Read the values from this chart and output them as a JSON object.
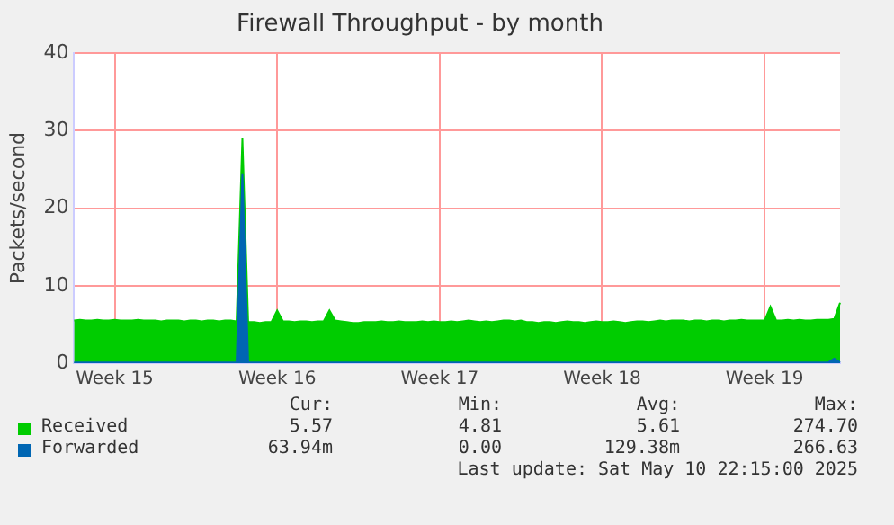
{
  "chart_data": {
    "type": "area",
    "title": "Firewall Throughput - by month",
    "ylabel": "Packets/second",
    "categories": [
      null,
      null,
      null,
      null,
      null,
      null,
      null,
      "Week 15",
      null,
      null,
      null,
      null,
      null,
      null,
      null,
      null,
      null,
      null,
      null,
      null,
      null,
      null,
      null,
      null,
      null,
      null,
      null,
      null,
      null,
      null,
      null,
      null,
      null,
      null,
      null,
      "Week 16",
      null,
      null,
      null,
      null,
      null,
      null,
      null,
      null,
      null,
      null,
      null,
      null,
      null,
      null,
      null,
      null,
      null,
      null,
      null,
      null,
      null,
      null,
      null,
      null,
      null,
      null,
      null,
      "Week 17",
      null,
      null,
      null,
      null,
      null,
      null,
      null,
      null,
      null,
      null,
      null,
      null,
      null,
      null,
      null,
      null,
      null,
      null,
      null,
      null,
      null,
      null,
      null,
      null,
      null,
      null,
      null,
      "Week 18",
      null,
      null,
      null,
      null,
      null,
      null,
      null,
      null,
      null,
      null,
      null,
      null,
      null,
      null,
      null,
      null,
      null,
      null,
      null,
      null,
      null,
      null,
      null,
      null,
      null,
      null,
      null,
      "Week 19",
      null,
      null,
      null,
      null,
      null,
      null,
      null,
      null,
      null,
      null,
      null,
      null,
      null
    ],
    "ylim": [
      0,
      40
    ],
    "yticks": [
      0,
      10,
      20,
      30,
      40
    ],
    "grid": true,
    "legend": "bottom left",
    "series": [
      {
        "name": "Received",
        "color": "#00cc00",
        "values": [
          5.5,
          5.6,
          5.5,
          5.5,
          5.6,
          5.5,
          5.5,
          5.6,
          5.5,
          5.5,
          5.5,
          5.6,
          5.5,
          5.5,
          5.5,
          5.4,
          5.5,
          5.5,
          5.5,
          5.4,
          5.5,
          5.5,
          5.4,
          5.5,
          5.5,
          5.4,
          5.5,
          5.5,
          5.4,
          29,
          5.3,
          5.3,
          5.2,
          5.3,
          5.3,
          6.8,
          5.4,
          5.4,
          5.3,
          5.4,
          5.4,
          5.3,
          5.4,
          5.4,
          6.8,
          5.5,
          5.4,
          5.3,
          5.2,
          5.2,
          5.3,
          5.3,
          5.3,
          5.4,
          5.3,
          5.3,
          5.4,
          5.3,
          5.3,
          5.3,
          5.4,
          5.3,
          5.4,
          5.3,
          5.3,
          5.4,
          5.3,
          5.4,
          5.5,
          5.4,
          5.3,
          5.4,
          5.3,
          5.4,
          5.5,
          5.5,
          5.4,
          5.5,
          5.3,
          5.3,
          5.2,
          5.3,
          5.3,
          5.2,
          5.3,
          5.4,
          5.3,
          5.3,
          5.2,
          5.3,
          5.4,
          5.3,
          5.3,
          5.4,
          5.3,
          5.2,
          5.3,
          5.4,
          5.4,
          5.3,
          5.4,
          5.5,
          5.4,
          5.5,
          5.5,
          5.5,
          5.4,
          5.5,
          5.5,
          5.4,
          5.5,
          5.5,
          5.4,
          5.5,
          5.5,
          5.6,
          5.5,
          5.5,
          5.5,
          5.5,
          7.3,
          5.5,
          5.5,
          5.6,
          5.5,
          5.6,
          5.5,
          5.5,
          5.6,
          5.6,
          5.6,
          5.7,
          7.8
        ]
      },
      {
        "name": "Forwarded",
        "color": "#0066b3",
        "values": [
          0.1,
          0.1,
          0.1,
          0.1,
          0.1,
          0.1,
          0.1,
          0.1,
          0.1,
          0.1,
          0.1,
          0.1,
          0.1,
          0.1,
          0.1,
          0.1,
          0.1,
          0.1,
          0.1,
          0.1,
          0.1,
          0.1,
          0.1,
          0.1,
          0.1,
          0.1,
          0.1,
          0.1,
          0.1,
          24.5,
          0.1,
          0.1,
          0.1,
          0.1,
          0.1,
          0.1,
          0.1,
          0.1,
          0.1,
          0.1,
          0.1,
          0.1,
          0.1,
          0.1,
          0.1,
          0.1,
          0.1,
          0.1,
          0.1,
          0.1,
          0.1,
          0.1,
          0.1,
          0.1,
          0.1,
          0.1,
          0.1,
          0.1,
          0.1,
          0.1,
          0.1,
          0.1,
          0.1,
          0.1,
          0.1,
          0.1,
          0.1,
          0.1,
          0.1,
          0.1,
          0.1,
          0.1,
          0.1,
          0.1,
          0.1,
          0.1,
          0.1,
          0.1,
          0.1,
          0.1,
          0.1,
          0.1,
          0.1,
          0.1,
          0.1,
          0.1,
          0.1,
          0.1,
          0.1,
          0.1,
          0.1,
          0.1,
          0.1,
          0.1,
          0.1,
          0.1,
          0.1,
          0.1,
          0.1,
          0.1,
          0.1,
          0.1,
          0.1,
          0.1,
          0.1,
          0.1,
          0.1,
          0.1,
          0.1,
          0.1,
          0.1,
          0.1,
          0.1,
          0.1,
          0.1,
          0.1,
          0.1,
          0.1,
          0.1,
          0.1,
          0.1,
          0.1,
          0.1,
          0.1,
          0.1,
          0.1,
          0.1,
          0.1,
          0.1,
          0.1,
          0.1,
          0.6,
          0.1
        ]
      }
    ],
    "annotations": [
      "Cur:",
      "Min:",
      "Avg:",
      "Max:",
      "5.57",
      "4.81",
      "5.61",
      "274.70",
      "63.94m",
      "0.00",
      "129.38m",
      "266.63",
      "Last update: Sat May 10 22:15:00 2025"
    ]
  }
}
